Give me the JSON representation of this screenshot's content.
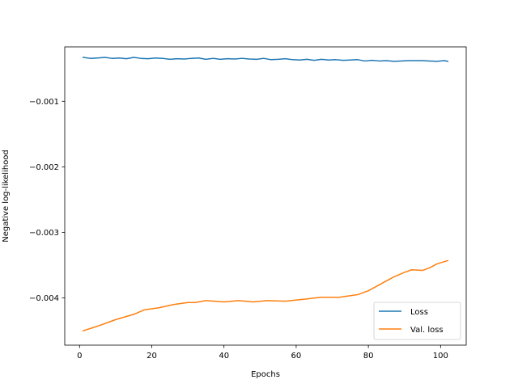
{
  "chart_data": {
    "type": "line",
    "title": "",
    "xlabel": "Epochs",
    "ylabel": "Negative log-likelihood",
    "xlim": [
      -4.1,
      107.1
    ],
    "ylim": [
      -0.00472,
      -0.00017
    ],
    "xticks": [
      0,
      20,
      40,
      60,
      80,
      100
    ],
    "xtick_labels": [
      "0",
      "20",
      "40",
      "60",
      "80",
      "100"
    ],
    "yticks": [
      -0.001,
      -0.002,
      -0.003,
      -0.004
    ],
    "ytick_labels": [
      "−0.001",
      "−0.002",
      "−0.003",
      "−0.004"
    ],
    "grid": false,
    "legend_position": "lower right",
    "series": [
      {
        "name": "Loss",
        "color": "#1f77b4",
        "x": [
          1,
          3,
          5,
          7,
          9,
          11,
          13,
          15,
          17,
          19,
          21,
          23,
          25,
          27,
          29,
          31,
          33,
          35,
          37,
          39,
          41,
          43,
          45,
          47,
          49,
          51,
          53,
          55,
          57,
          59,
          61,
          63,
          65,
          67,
          69,
          71,
          73,
          75,
          77,
          79,
          81,
          83,
          85,
          87,
          89,
          91,
          93,
          95,
          97,
          99,
          101,
          102
        ],
        "y": [
          -0.00033,
          -0.000345,
          -0.00034,
          -0.00033,
          -0.000345,
          -0.00034,
          -0.00035,
          -0.00033,
          -0.000345,
          -0.00035,
          -0.00034,
          -0.000345,
          -0.00036,
          -0.00035,
          -0.000355,
          -0.000345,
          -0.00034,
          -0.00036,
          -0.000345,
          -0.00036,
          -0.00035,
          -0.000355,
          -0.000345,
          -0.000355,
          -0.00036,
          -0.000345,
          -0.000365,
          -0.00036,
          -0.00035,
          -0.000365,
          -0.00037,
          -0.00036,
          -0.000375,
          -0.00036,
          -0.00037,
          -0.000365,
          -0.000375,
          -0.00037,
          -0.000365,
          -0.000385,
          -0.000375,
          -0.000385,
          -0.00038,
          -0.00039,
          -0.000385,
          -0.00038,
          -0.00038,
          -0.00038,
          -0.000385,
          -0.00039,
          -0.00038,
          -0.00039
        ]
      },
      {
        "name": "Val. loss",
        "color": "#ff7f0e",
        "x": [
          1,
          5,
          10,
          15,
          18,
          22,
          26,
          30,
          32,
          35,
          40,
          44,
          48,
          52,
          57,
          62,
          67,
          72,
          77,
          80,
          84,
          87,
          90,
          92,
          95,
          97,
          99,
          102
        ],
        "y": [
          -0.0045,
          -0.00443,
          -0.00433,
          -0.00425,
          -0.00418,
          -0.00415,
          -0.0041,
          -0.00407,
          -0.00407,
          -0.00404,
          -0.00406,
          -0.00404,
          -0.00406,
          -0.00404,
          -0.00405,
          -0.00402,
          -0.00399,
          -0.00399,
          -0.00395,
          -0.00389,
          -0.00377,
          -0.00368,
          -0.00361,
          -0.00357,
          -0.00358,
          -0.00354,
          -0.00348,
          -0.00343
        ]
      }
    ]
  }
}
